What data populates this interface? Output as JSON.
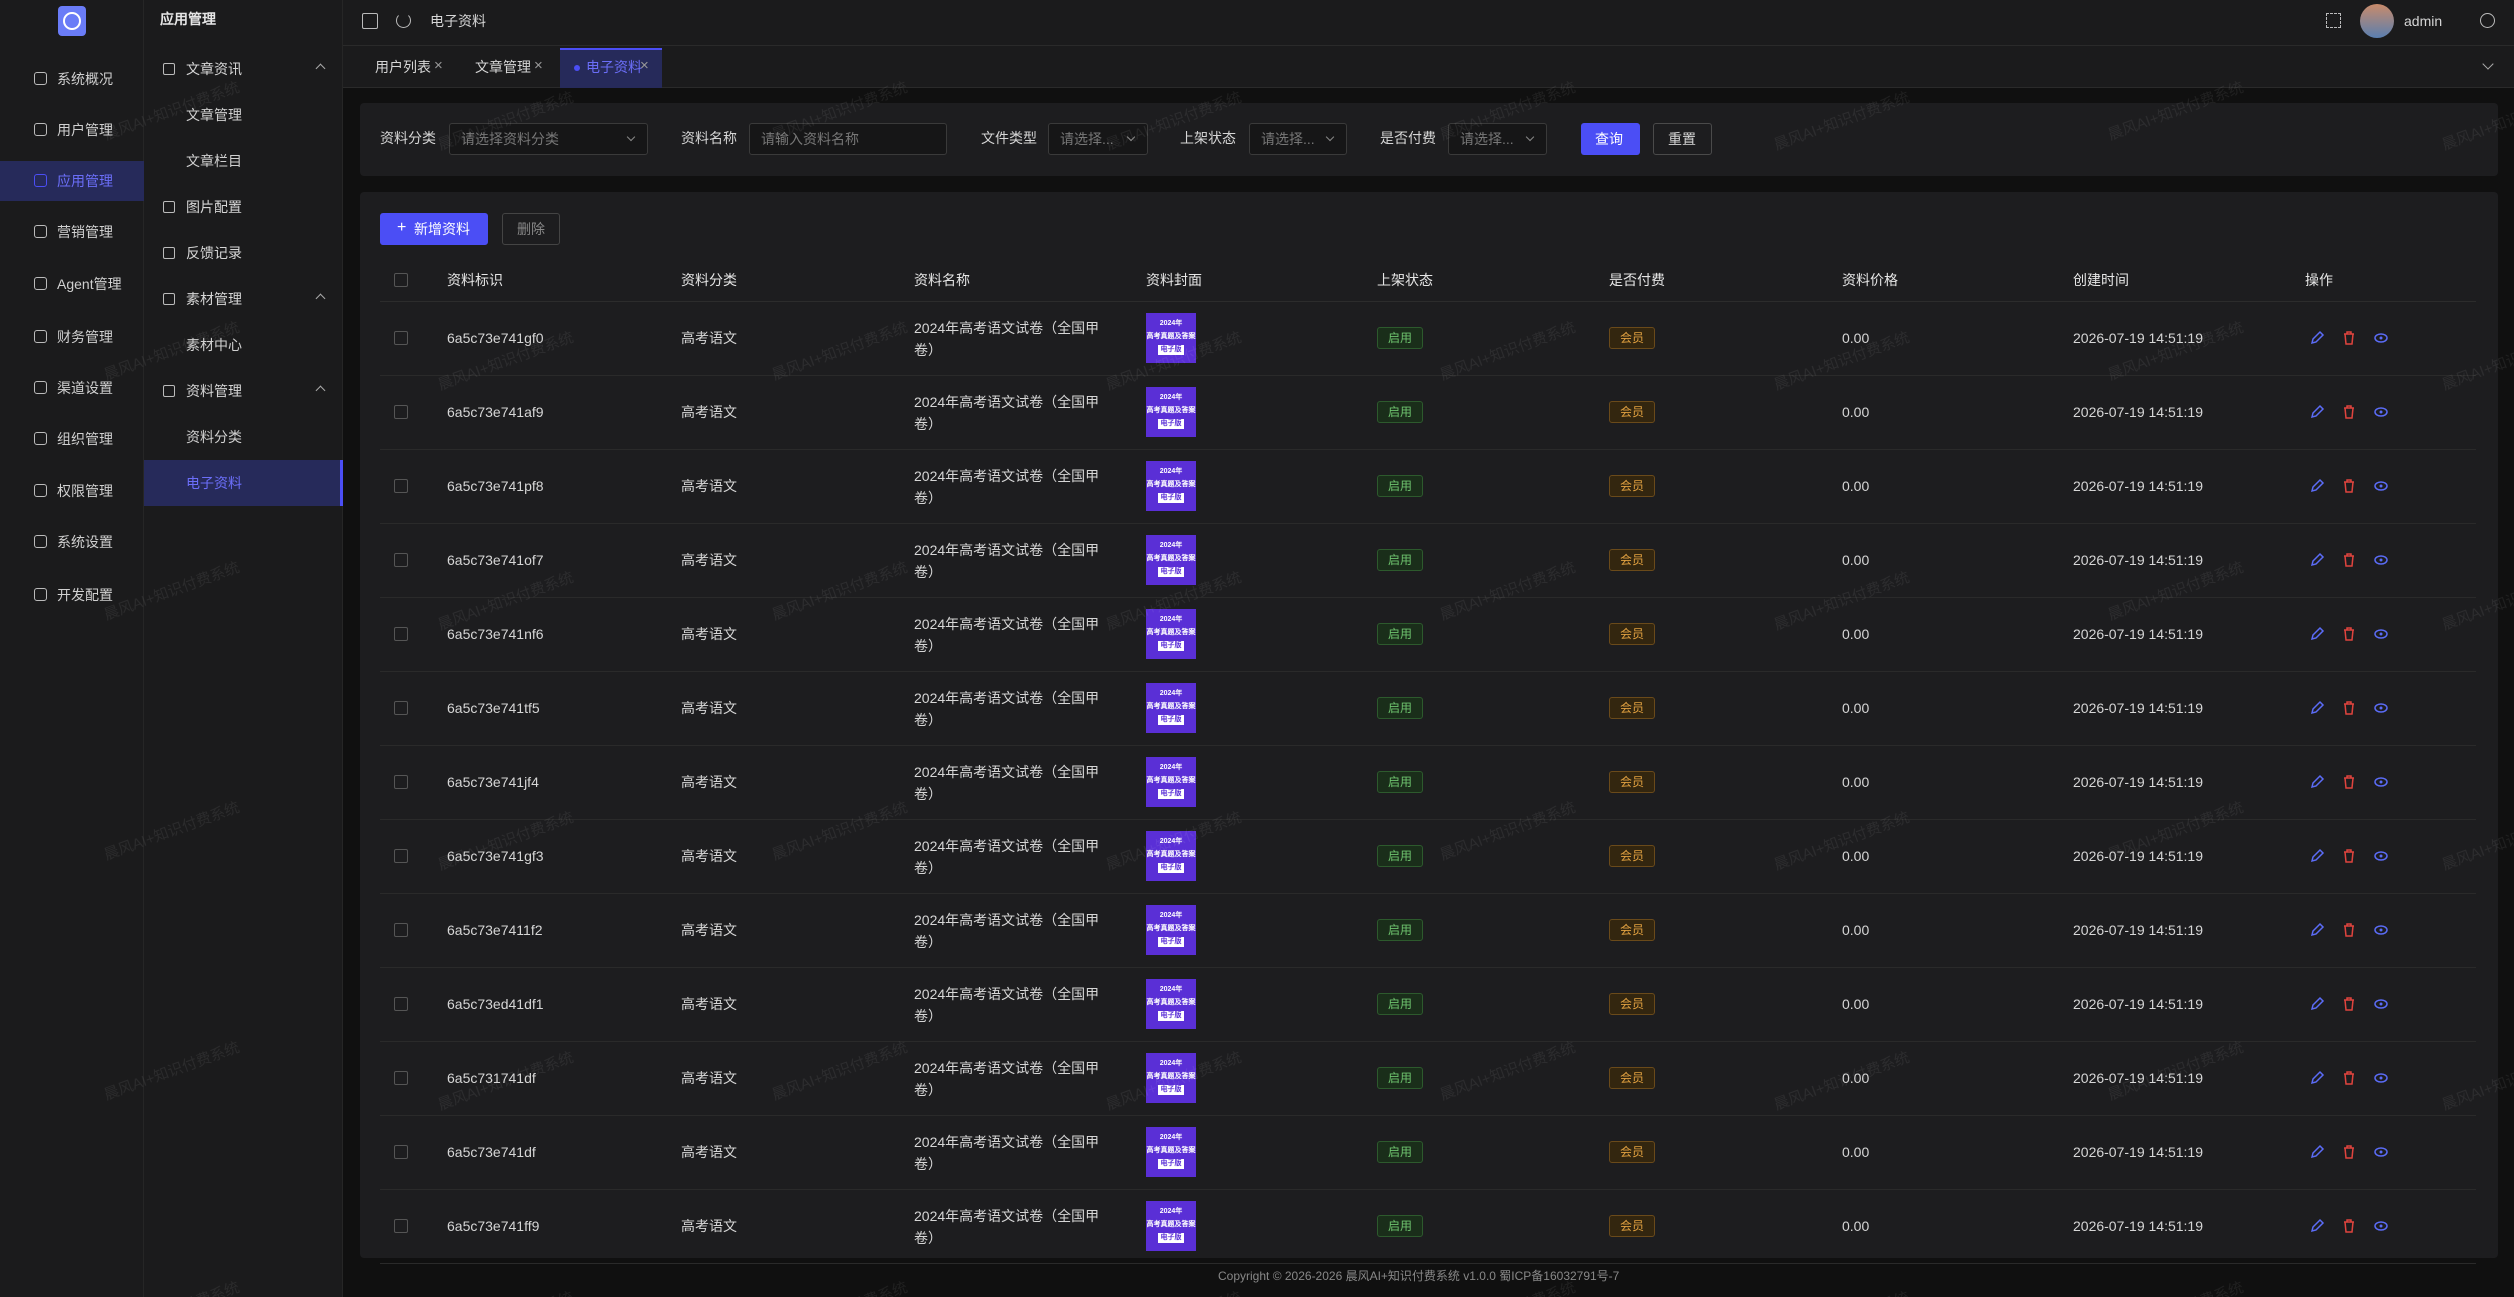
{
  "watermark": "晨风AI+知识付费系统",
  "topbar": {
    "breadcrumb": "电子资料",
    "user": "admin"
  },
  "nav": [
    "系统概况",
    "用户管理",
    "应用管理",
    "营销管理",
    "Agent管理",
    "财务管理",
    "渠道设置",
    "组织管理",
    "权限管理",
    "系统设置",
    "开发配置"
  ],
  "submenu": {
    "title": "应用管理",
    "groups": [
      {
        "label": "文章资讯",
        "children": [
          "文章管理",
          "文章栏目"
        ]
      },
      {
        "label": "图片配置"
      },
      {
        "label": "反馈记录"
      },
      {
        "label": "素材管理",
        "children": [
          "素材中心"
        ]
      },
      {
        "label": "资料管理",
        "children": [
          "资料分类",
          "电子资料"
        ]
      }
    ]
  },
  "tabs": [
    "用户列表",
    "文章管理",
    "电子资料"
  ],
  "filters": [
    {
      "label": "资料分类",
      "placeholder": "请选择资料分类"
    },
    {
      "label": "资料名称",
      "placeholder": "请输入资料名称"
    },
    {
      "label": "文件类型",
      "placeholder": "请选择..."
    },
    {
      "label": "上架状态",
      "placeholder": "请选择..."
    },
    {
      "label": "是否付费",
      "placeholder": "请选择..."
    }
  ],
  "buttons": {
    "query": "查询",
    "reset": "重置",
    "add": "新增资料",
    "delete": "删除"
  },
  "table": {
    "columns": [
      "资料标识",
      "资料分类",
      "资料名称",
      "资料封面",
      "上架状态",
      "是否付费",
      "资料价格",
      "创建时间",
      "操作"
    ],
    "cover": [
      "2024年",
      "高考真题及答案",
      "电子版"
    ],
    "rows": [
      [
        "6a5c73e741gf0",
        "高考语文",
        "2024年高考语文试卷（全国甲卷）",
        "启用",
        "会员",
        "0.00",
        "2026-07-19 14:51:19"
      ],
      [
        "6a5c73e741af9",
        "高考语文",
        "2024年高考语文试卷（全国甲卷）",
        "启用",
        "会员",
        "0.00",
        "2026-07-19 14:51:19"
      ],
      [
        "6a5c73e741pf8",
        "高考语文",
        "2024年高考语文试卷（全国甲卷）",
        "启用",
        "会员",
        "0.00",
        "2026-07-19 14:51:19"
      ],
      [
        "6a5c73e741of7",
        "高考语文",
        "2024年高考语文试卷（全国甲卷）",
        "启用",
        "会员",
        "0.00",
        "2026-07-19 14:51:19"
      ],
      [
        "6a5c73e741nf6",
        "高考语文",
        "2024年高考语文试卷（全国甲卷）",
        "启用",
        "会员",
        "0.00",
        "2026-07-19 14:51:19"
      ],
      [
        "6a5c73e741tf5",
        "高考语文",
        "2024年高考语文试卷（全国甲卷）",
        "启用",
        "会员",
        "0.00",
        "2026-07-19 14:51:19"
      ],
      [
        "6a5c73e741jf4",
        "高考语文",
        "2024年高考语文试卷（全国甲卷）",
        "启用",
        "会员",
        "0.00",
        "2026-07-19 14:51:19"
      ],
      [
        "6a5c73e741gf3",
        "高考语文",
        "2024年高考语文试卷（全国甲卷）",
        "启用",
        "会员",
        "0.00",
        "2026-07-19 14:51:19"
      ],
      [
        "6a5c73e7411f2",
        "高考语文",
        "2024年高考语文试卷（全国甲卷）",
        "启用",
        "会员",
        "0.00",
        "2026-07-19 14:51:19"
      ],
      [
        "6a5c73ed41df1",
        "高考语文",
        "2024年高考语文试卷（全国甲卷）",
        "启用",
        "会员",
        "0.00",
        "2026-07-19 14:51:19"
      ],
      [
        "6a5c731741df",
        "高考语文",
        "2024年高考语文试卷（全国甲卷）",
        "启用",
        "会员",
        "0.00",
        "2026-07-19 14:51:19"
      ],
      [
        "6a5c73e741df",
        "高考语文",
        "2024年高考语文试卷（全国甲卷）",
        "启用",
        "会员",
        "0.00",
        "2026-07-19 14:51:19"
      ],
      [
        "6a5c73e741ff9",
        "高考语文",
        "2024年高考语文试卷（全国甲卷）",
        "启用",
        "会员",
        "0.00",
        "2026-07-19 14:51:19"
      ]
    ]
  },
  "footer": "Copyright © 2026-2026 晨风AI+知识付费系统 v1.0.0  蜀ICP备16032791号-7"
}
